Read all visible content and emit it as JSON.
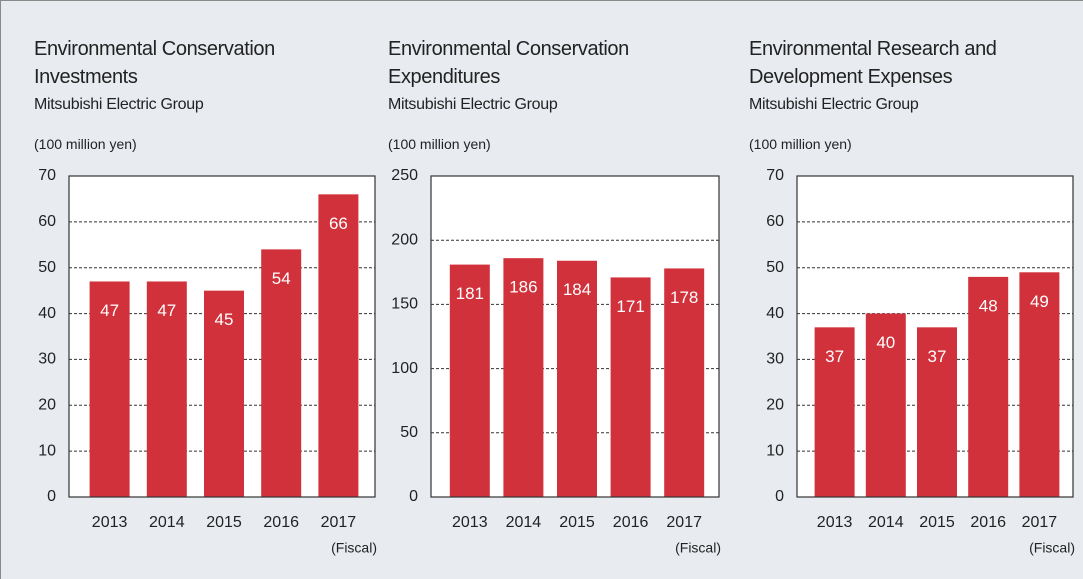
{
  "chart_data": [
    {
      "type": "bar",
      "title": "Environmental Conservation Investments",
      "subtitle": "Mitsubishi Electric Group",
      "y_label": "(100 million yen)",
      "x_annotation": "(Fiscal)",
      "categories": [
        "2013",
        "2014",
        "2015",
        "2016",
        "2017"
      ],
      "values": [
        47,
        47,
        45,
        54,
        66
      ],
      "color": "#d1313a",
      "ylim": [
        0,
        70
      ],
      "yticks": [
        0,
        10,
        20,
        30,
        40,
        50,
        60,
        70
      ],
      "grid": true
    },
    {
      "type": "bar",
      "title": "Environmental Conservation Expenditures",
      "subtitle": "Mitsubishi Electric Group",
      "y_label": "(100 million yen)",
      "x_annotation": "(Fiscal)",
      "categories": [
        "2013",
        "2014",
        "2015",
        "2016",
        "2017"
      ],
      "values": [
        181,
        186,
        184,
        171,
        178
      ],
      "color": "#d1313a",
      "ylim": [
        0,
        250
      ],
      "yticks": [
        0,
        50,
        100,
        150,
        200,
        250
      ],
      "grid": true
    },
    {
      "type": "bar",
      "title": "Environmental Research and Development Expenses",
      "subtitle": "Mitsubishi Electric Group",
      "y_label": "(100 million yen)",
      "x_annotation": "(Fiscal)",
      "categories": [
        "2013",
        "2014",
        "2015",
        "2016",
        "2017"
      ],
      "values": [
        37,
        40,
        37,
        48,
        49
      ],
      "color": "#d1313a",
      "ylim": [
        0,
        70
      ],
      "yticks": [
        0,
        10,
        20,
        30,
        40,
        50,
        60,
        70
      ],
      "grid": true
    }
  ]
}
